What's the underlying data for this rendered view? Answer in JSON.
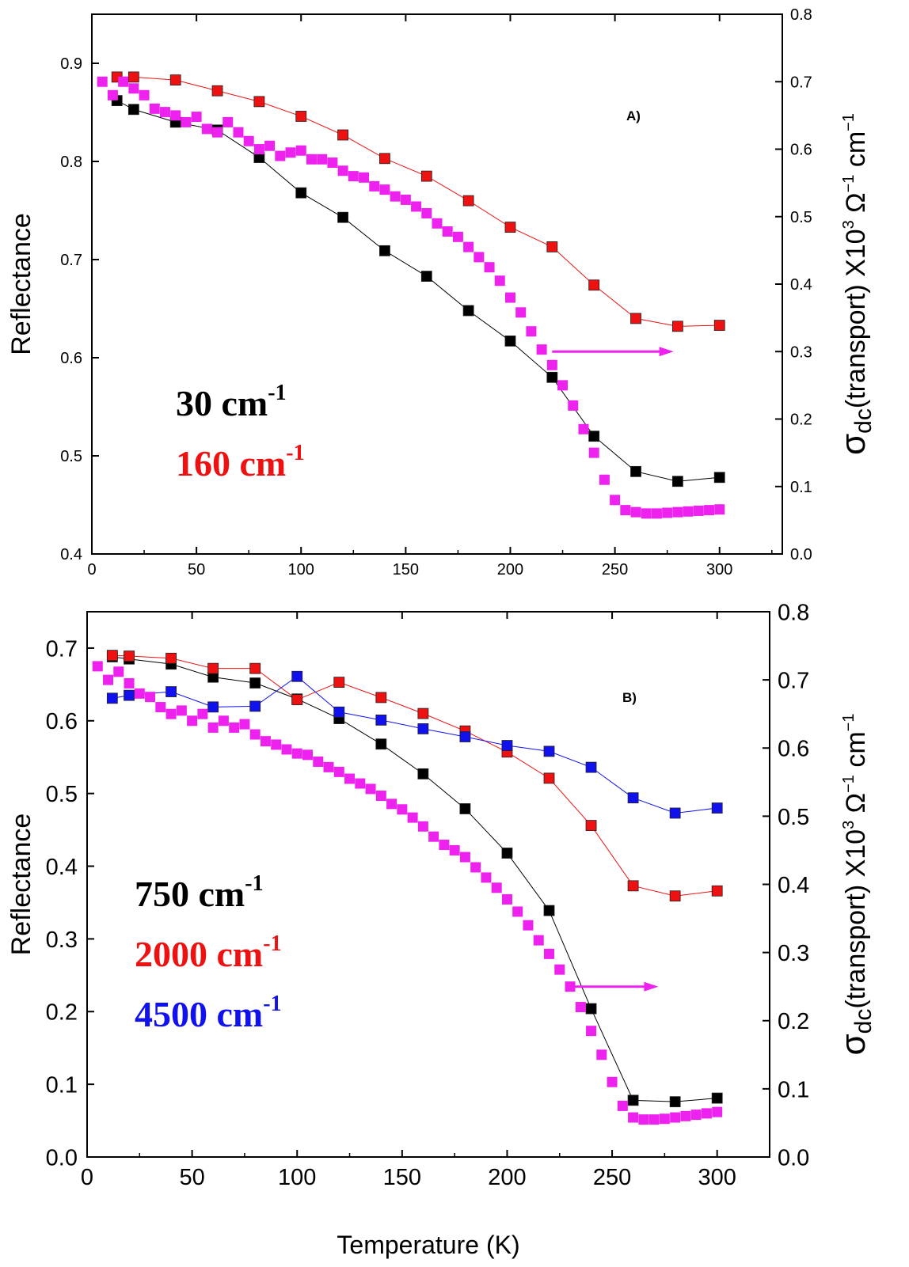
{
  "chart_data": [
    {
      "type": "scatter",
      "panel_label": "A)",
      "xlabel": "",
      "xlim": [
        0,
        330
      ],
      "x_ticks": [
        "0",
        "50",
        "100",
        "150",
        "200",
        "250",
        "300"
      ],
      "ylabel": "Reflectance",
      "ylim": [
        0.4,
        0.95
      ],
      "y_ticks": [
        "0.4",
        "0.5",
        "0.6",
        "0.7",
        "0.8",
        "0.9"
      ],
      "y2label_main": "σ",
      "y2label_sub": "dc",
      "y2label_rest": "(transport) X10",
      "y2label_exp": "3",
      "y2label_unit": " Ω",
      "y2label_unit_exp": "−1",
      "y2label_unit2": " cm",
      "y2label_unit2_exp": "−1",
      "y2lim": [
        0.0,
        0.8
      ],
      "y2_ticks": [
        "0.0",
        "0.1",
        "0.2",
        "0.3",
        "0.4",
        "0.5",
        "0.6",
        "0.7",
        "0.8"
      ],
      "arrow": {
        "from_x": 220,
        "to_x": 278,
        "y2": 0.3,
        "color": "#ee22ee"
      },
      "series": [
        {
          "name": "30 cm",
          "sup": "-1",
          "color": "#000000",
          "axis": "left",
          "x": [
            12,
            20,
            40,
            60,
            80,
            100,
            120,
            140,
            160,
            180,
            200,
            220,
            240,
            260,
            280,
            300
          ],
          "values": [
            0.862,
            0.853,
            0.84,
            0.832,
            0.804,
            0.768,
            0.743,
            0.709,
            0.683,
            0.648,
            0.617,
            0.58,
            0.52,
            0.484,
            0.474,
            0.478
          ]
        },
        {
          "name": "160 cm",
          "sup": "-1",
          "color": "#ee1111",
          "axis": "left",
          "x": [
            12,
            20,
            40,
            60,
            80,
            100,
            120,
            140,
            160,
            180,
            200,
            220,
            240,
            260,
            280,
            300
          ],
          "values": [
            0.886,
            0.886,
            0.883,
            0.872,
            0.861,
            0.846,
            0.827,
            0.803,
            0.785,
            0.76,
            0.733,
            0.713,
            0.674,
            0.64,
            0.632,
            0.633
          ]
        },
        {
          "name": "σdc (transport)",
          "color": "#ee22ee",
          "axis": "right",
          "x": [
            5,
            10,
            15,
            20,
            25,
            30,
            35,
            40,
            45,
            50,
            55,
            60,
            65,
            70,
            75,
            80,
            85,
            90,
            95,
            100,
            105,
            110,
            115,
            120,
            125,
            130,
            135,
            140,
            145,
            150,
            155,
            160,
            165,
            170,
            175,
            180,
            185,
            190,
            195,
            200,
            205,
            210,
            215,
            220,
            225,
            230,
            235,
            240,
            245,
            250,
            255,
            260,
            265,
            270,
            275,
            280,
            285,
            290,
            295,
            300
          ],
          "values": [
            0.7,
            0.68,
            0.7,
            0.69,
            0.68,
            0.66,
            0.655,
            0.65,
            0.64,
            0.648,
            0.63,
            0.625,
            0.64,
            0.625,
            0.612,
            0.6,
            0.605,
            0.59,
            0.595,
            0.598,
            0.585,
            0.585,
            0.58,
            0.568,
            0.56,
            0.558,
            0.545,
            0.54,
            0.53,
            0.525,
            0.515,
            0.505,
            0.49,
            0.478,
            0.47,
            0.455,
            0.44,
            0.425,
            0.405,
            0.38,
            0.358,
            0.33,
            0.303,
            0.28,
            0.25,
            0.22,
            0.185,
            0.15,
            0.11,
            0.08,
            0.065,
            0.062,
            0.06,
            0.06,
            0.061,
            0.062,
            0.063,
            0.064,
            0.065,
            0.066
          ]
        }
      ]
    },
    {
      "type": "scatter",
      "panel_label": "B)",
      "xlabel": "Temperature (K)",
      "xlim": [
        0,
        325
      ],
      "x_ticks": [
        "0",
        "50",
        "100",
        "150",
        "200",
        "250",
        "300"
      ],
      "ylabel": "Reflectance",
      "ylim": [
        0.0,
        0.75
      ],
      "y_ticks": [
        "0.0",
        "0.1",
        "0.2",
        "0.3",
        "0.4",
        "0.5",
        "0.6",
        "0.7"
      ],
      "y2label_main": "σ",
      "y2label_sub": "dc",
      "y2label_rest": "(transport) X10",
      "y2label_exp": "3",
      "y2label_unit": " Ω",
      "y2label_unit_exp": "−1",
      "y2label_unit2": " cm",
      "y2label_unit2_exp": "−1",
      "y2lim": [
        0.0,
        0.8
      ],
      "y2_ticks": [
        "0.0",
        "0.1",
        "0.2",
        "0.3",
        "0.4",
        "0.5",
        "0.6",
        "0.7",
        "0.8"
      ],
      "arrow": {
        "from_x": 230,
        "to_x": 272,
        "y2": 0.25,
        "color": "#ee22ee"
      },
      "series": [
        {
          "name": "750 cm",
          "sup": "-1",
          "color": "#000000",
          "axis": "left",
          "x": [
            12,
            20,
            40,
            60,
            80,
            100,
            120,
            140,
            160,
            180,
            200,
            220,
            240,
            260,
            280,
            300
          ],
          "values": [
            0.688,
            0.685,
            0.678,
            0.66,
            0.652,
            0.63,
            0.603,
            0.568,
            0.527,
            0.479,
            0.418,
            0.339,
            0.204,
            0.078,
            0.076,
            0.081
          ]
        },
        {
          "name": "2000 cm",
          "sup": "-1",
          "color": "#ee1111",
          "axis": "left",
          "x": [
            12,
            20,
            40,
            60,
            80,
            100,
            120,
            140,
            160,
            180,
            200,
            220,
            240,
            260,
            280,
            300
          ],
          "values": [
            0.69,
            0.689,
            0.686,
            0.672,
            0.672,
            0.629,
            0.653,
            0.632,
            0.61,
            0.586,
            0.557,
            0.521,
            0.456,
            0.373,
            0.359,
            0.366
          ]
        },
        {
          "name": "4500 cm",
          "sup": "-1",
          "color": "#1111ee",
          "axis": "left",
          "x": [
            12,
            20,
            40,
            60,
            80,
            100,
            120,
            140,
            160,
            180,
            200,
            220,
            240,
            260,
            280,
            300
          ],
          "values": [
            0.631,
            0.635,
            0.64,
            0.619,
            0.62,
            0.661,
            0.612,
            0.601,
            0.589,
            0.578,
            0.566,
            0.558,
            0.536,
            0.494,
            0.473,
            0.48
          ]
        },
        {
          "name": "σdc (transport)",
          "color": "#ee22ee",
          "axis": "right",
          "x": [
            5,
            10,
            15,
            20,
            25,
            30,
            35,
            40,
            45,
            50,
            55,
            60,
            65,
            70,
            75,
            80,
            85,
            90,
            95,
            100,
            105,
            110,
            115,
            120,
            125,
            130,
            135,
            140,
            145,
            150,
            155,
            160,
            165,
            170,
            175,
            180,
            185,
            190,
            195,
            200,
            205,
            210,
            215,
            220,
            225,
            230,
            235,
            240,
            245,
            250,
            255,
            260,
            265,
            270,
            275,
            280,
            285,
            290,
            295,
            300
          ],
          "values": [
            0.72,
            0.7,
            0.712,
            0.695,
            0.68,
            0.675,
            0.66,
            0.65,
            0.655,
            0.64,
            0.65,
            0.63,
            0.64,
            0.63,
            0.635,
            0.62,
            0.61,
            0.605,
            0.598,
            0.592,
            0.59,
            0.58,
            0.572,
            0.565,
            0.555,
            0.548,
            0.54,
            0.53,
            0.518,
            0.51,
            0.498,
            0.485,
            0.47,
            0.458,
            0.45,
            0.44,
            0.425,
            0.41,
            0.395,
            0.378,
            0.36,
            0.34,
            0.318,
            0.298,
            0.275,
            0.25,
            0.22,
            0.185,
            0.15,
            0.11,
            0.075,
            0.058,
            0.055,
            0.055,
            0.056,
            0.058,
            0.06,
            0.062,
            0.064,
            0.066
          ]
        }
      ]
    }
  ]
}
